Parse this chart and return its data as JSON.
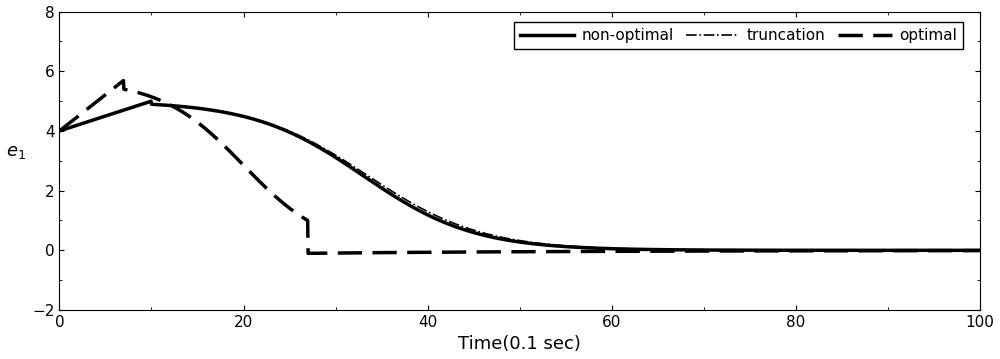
{
  "title": "",
  "xlabel": "Time(0.1 sec)",
  "ylabel": "$e_1$",
  "xlim": [
    0,
    100
  ],
  "ylim": [
    -2,
    8
  ],
  "xticks": [
    0,
    20,
    40,
    60,
    80,
    100
  ],
  "yticks": [
    -2,
    0,
    2,
    4,
    6,
    8
  ],
  "legend_labels": [
    "non-optimal",
    "truncation",
    "optimal"
  ],
  "line_color": "#000000",
  "background_color": "#ffffff",
  "figsize": [
    10.0,
    3.59
  ],
  "dpi": 100,
  "lw_thick": 2.5,
  "lw_thin": 1.2
}
